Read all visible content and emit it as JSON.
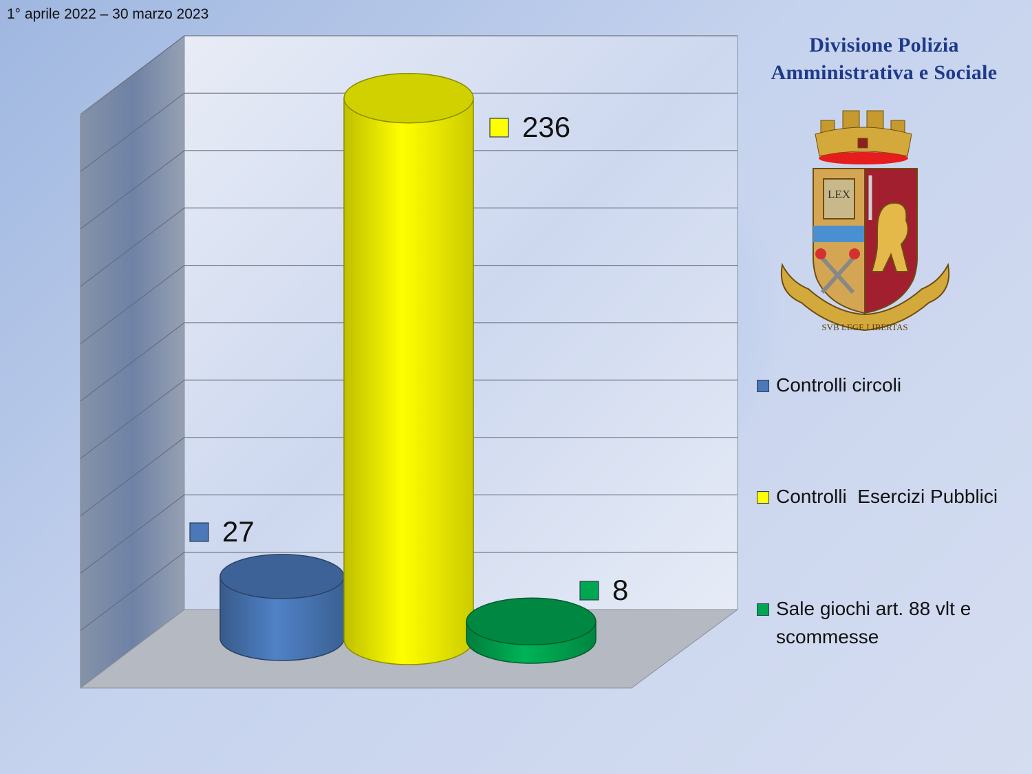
{
  "header": {
    "date_range": "1° aprile 2022 – 30 marzo 2023",
    "division_line1": "Divisione   Polizia",
    "division_line2": "Amministrativa e Sociale"
  },
  "emblem": {
    "icon": "polizia-di-stato-crest-icon",
    "book_text": "LEX",
    "motto": "SVB LEGE LIBERTAS"
  },
  "chart_data": {
    "type": "bar",
    "style": "3d-cylinder",
    "title": "",
    "xlabel": "",
    "ylabel": "",
    "grid": true,
    "legend_position": "right",
    "series": [
      {
        "name": "Controlli circoli",
        "value": 27,
        "color": "#4a78b8",
        "label": "27"
      },
      {
        "name": "Controlli  Esercizi Pubblici",
        "value": 236,
        "color": "#ffff00",
        "label": "236"
      },
      {
        "name": "Sale giochi art. 88 vlt e scommesse",
        "value": 8,
        "color": "#00a650",
        "label": "8"
      }
    ],
    "ylim": [
      0,
      250
    ]
  }
}
